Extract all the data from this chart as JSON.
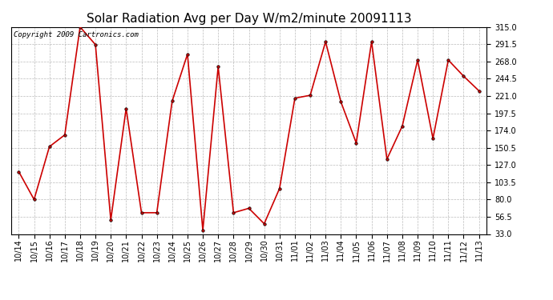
{
  "title": "Solar Radiation Avg per Day W/m2/minute 20091113",
  "copyright_text": "Copyright 2009 Cartronics.com",
  "labels": [
    "10/14",
    "10/15",
    "10/16",
    "10/17",
    "10/18",
    "10/19",
    "10/20",
    "10/21",
    "10/22",
    "10/23",
    "10/24",
    "10/25",
    "10/26",
    "10/27",
    "10/28",
    "10/29",
    "10/30",
    "10/31",
    "11/01",
    "11/02",
    "11/03",
    "11/04",
    "11/05",
    "11/06",
    "11/07",
    "11/08",
    "11/09",
    "11/10",
    "11/11",
    "11/12",
    "11/13"
  ],
  "values": [
    118,
    80,
    152,
    168,
    315,
    291,
    52,
    204,
    62,
    62,
    214,
    278,
    38,
    261,
    62,
    68,
    47,
    95,
    218,
    222,
    295,
    213,
    157,
    295,
    135,
    180,
    270,
    163,
    270,
    248,
    228
  ],
  "y_ticks": [
    33.0,
    56.5,
    80.0,
    103.5,
    127.0,
    150.5,
    174.0,
    197.5,
    221.0,
    244.5,
    268.0,
    291.5,
    315.0
  ],
  "ylim": [
    33.0,
    315.0
  ],
  "line_color": "#cc0000",
  "marker_color": "#000000",
  "background_color": "#ffffff",
  "plot_bg_color": "#ffffff",
  "grid_color": "#aaaaaa",
  "title_fontsize": 11,
  "copyright_fontsize": 6.5,
  "tick_fontsize": 7,
  "fig_width": 6.9,
  "fig_height": 3.75,
  "dpi": 100
}
